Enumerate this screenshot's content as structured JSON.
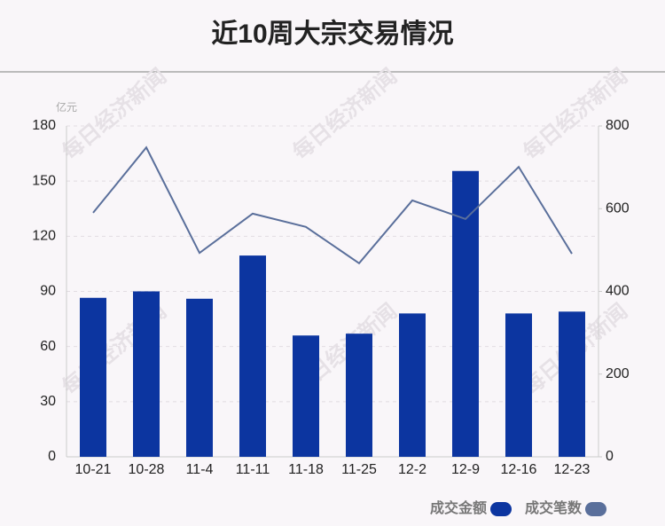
{
  "chart_data": {
    "type": "bar",
    "title": "近10周大宗交易情况",
    "y_unit": "亿元",
    "watermark": "每日经济新闻",
    "categories": [
      "10-21",
      "10-28",
      "11-4",
      "11-11",
      "11-18",
      "11-25",
      "12-2",
      "12-9",
      "12-16",
      "12-23"
    ],
    "series": [
      {
        "name": "成交金额",
        "type": "bar",
        "color": "#0c35a0",
        "values": [
          86.5,
          90,
          86,
          109.5,
          66,
          67,
          78,
          155.5,
          78,
          79
        ]
      },
      {
        "name": "成交笔数",
        "type": "line",
        "axis": "y2",
        "color": "#5a6f9b",
        "values": [
          590,
          748,
          493,
          588,
          556,
          468,
          620,
          575,
          701,
          491
        ]
      }
    ],
    "ylim": [
      0,
      180
    ],
    "yticks": [
      0,
      30,
      60,
      90,
      120,
      150,
      180
    ],
    "y2lim": [
      0,
      800
    ],
    "y2ticks": [
      0,
      200,
      400,
      600,
      800
    ],
    "grid": true,
    "legend": "bottom-right"
  }
}
